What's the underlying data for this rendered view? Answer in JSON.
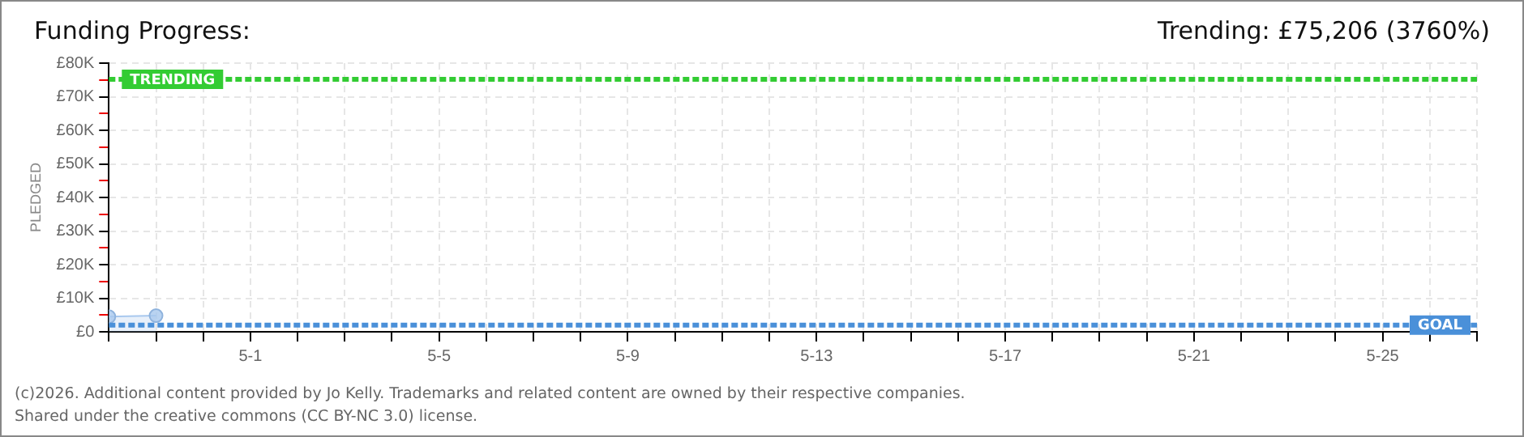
{
  "chart_data": {
    "type": "area",
    "title": "Funding Progress:",
    "subtitle": "Trending: £75,206 (3760%)",
    "ylabel": "PLEDGED",
    "x": [
      "--04-28",
      "--04-29"
    ],
    "series": [
      {
        "color": "#a8c8ee",
        "values": [
          4500,
          4800
        ]
      }
    ],
    "marker": "circle",
    "line_style": "solid",
    "grid": true,
    "legend": false,
    "xlim": [
      "--04-28",
      "--05-27"
    ],
    "xticks": [
      {
        "value": "--04-28",
        "label": null
      },
      {
        "value": "--04-29",
        "label": null
      },
      {
        "value": "--04-30",
        "label": null
      },
      {
        "value": "--05-01",
        "label": "5-1"
      },
      {
        "value": "--05-02",
        "label": null
      },
      {
        "value": "--05-03",
        "label": null
      },
      {
        "value": "--05-04",
        "label": null
      },
      {
        "value": "--05-05",
        "label": "5-5"
      },
      {
        "value": "--05-06",
        "label": null
      },
      {
        "value": "--05-07",
        "label": null
      },
      {
        "value": "--05-08",
        "label": null
      },
      {
        "value": "--05-09",
        "label": "5-9"
      },
      {
        "value": "--05-10",
        "label": null
      },
      {
        "value": "--05-11",
        "label": null
      },
      {
        "value": "--05-12",
        "label": null
      },
      {
        "value": "--05-13",
        "label": "5-13"
      },
      {
        "value": "--05-14",
        "label": null
      },
      {
        "value": "--05-15",
        "label": null
      },
      {
        "value": "--05-16",
        "label": null
      },
      {
        "value": "--05-17",
        "label": "5-17"
      },
      {
        "value": "--05-18",
        "label": null
      },
      {
        "value": "--05-19",
        "label": null
      },
      {
        "value": "--05-20",
        "label": null
      },
      {
        "value": "--05-21",
        "label": "5-21"
      },
      {
        "value": "--05-22",
        "label": null
      },
      {
        "value": "--05-23",
        "label": null
      },
      {
        "value": "--05-24",
        "label": null
      },
      {
        "value": "--05-25",
        "label": "5-25"
      },
      {
        "value": "--05-26",
        "label": null
      },
      {
        "value": "--05-27",
        "label": null
      }
    ],
    "ylim": [
      0,
      80000
    ],
    "yticks": [
      {
        "value": 0,
        "label": "£0"
      },
      {
        "value": 5000,
        "label": null
      },
      {
        "value": 10000,
        "label": "£10K"
      },
      {
        "value": 15000,
        "label": null
      },
      {
        "value": 20000,
        "label": "£20K"
      },
      {
        "value": 25000,
        "label": null
      },
      {
        "value": 30000,
        "label": "£30K"
      },
      {
        "value": 35000,
        "label": null
      },
      {
        "value": 40000,
        "label": "£40K"
      },
      {
        "value": 45000,
        "label": null
      },
      {
        "value": 50000,
        "label": "£50K"
      },
      {
        "value": 55000,
        "label": null
      },
      {
        "value": 60000,
        "label": "£60K"
      },
      {
        "value": 65000,
        "label": null
      },
      {
        "value": 70000,
        "label": "£70K"
      },
      {
        "value": 75000,
        "label": null
      },
      {
        "value": 80000,
        "label": "£80K"
      }
    ],
    "ref_lines": [
      {
        "axis": "y",
        "value": 75206,
        "label": "TRENDING",
        "color": "#33cc33",
        "line_style": "dashed"
      },
      {
        "axis": "y",
        "value": 2000,
        "label": "GOAL",
        "color": "#4a90d9",
        "line_style": "dashed"
      }
    ],
    "annotations": [
      "(c)2026. Additional content provided by Jo Kelly. Trademarks and related content are owned by their respective companies.",
      "Shared under the creative commons (CC BY-NC 3.0) license."
    ]
  }
}
